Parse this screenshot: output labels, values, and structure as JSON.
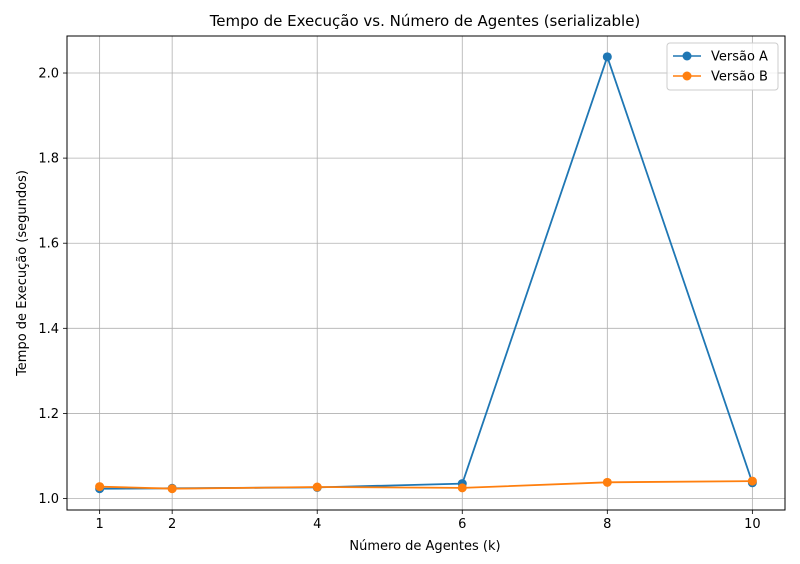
{
  "chart_data": {
    "type": "line",
    "title": "Tempo de Execução vs. Número de Agentes (serializable)",
    "xlabel": "Número de Agentes (k)",
    "ylabel": "Tempo de Execução (segundos)",
    "x": [
      1,
      2,
      4,
      6,
      8,
      10
    ],
    "xticks": [
      "1",
      "2",
      "4",
      "6",
      "8",
      "10"
    ],
    "yticks": [
      "1.0",
      "1.2",
      "1.4",
      "1.6",
      "1.8",
      "2.0"
    ],
    "xlim": [
      0.55,
      10.45
    ],
    "ylim": [
      0.973,
      2.087
    ],
    "grid": true,
    "legend_position": "top-right",
    "series": [
      {
        "name": "Versão A",
        "color": "#1f77b4",
        "values": [
          1.023,
          1.024,
          1.026,
          1.035,
          2.038,
          1.037
        ]
      },
      {
        "name": "Versão B",
        "color": "#ff7f0e",
        "values": [
          1.028,
          1.023,
          1.027,
          1.025,
          1.038,
          1.041
        ]
      }
    ]
  }
}
